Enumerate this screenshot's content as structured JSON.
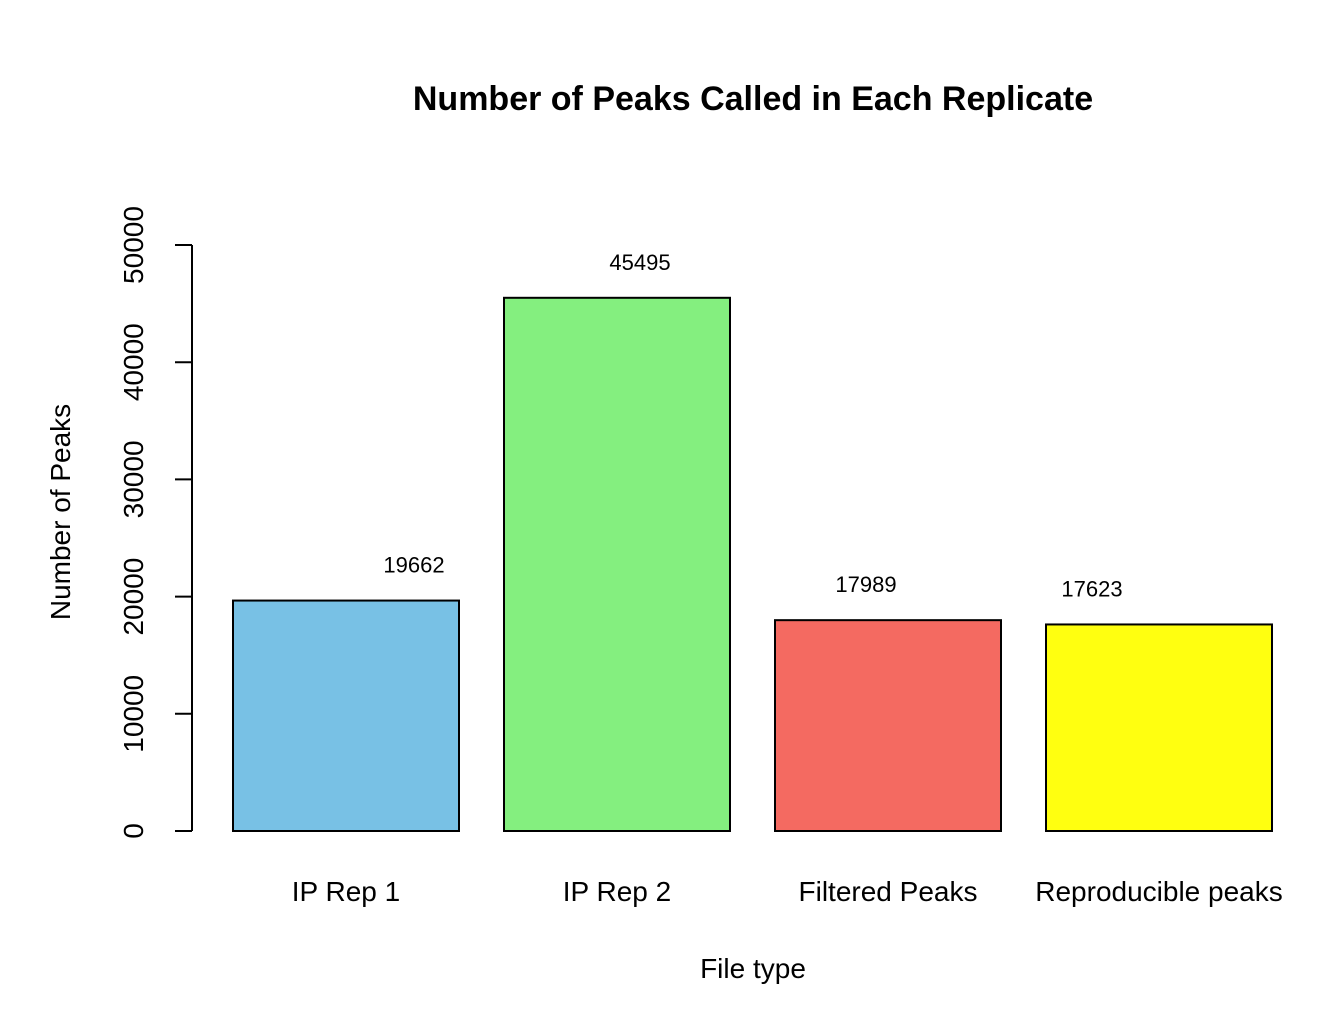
{
  "chart_data": {
    "type": "bar",
    "title": "Number of Peaks Called in Each Replicate",
    "xlabel": "File type",
    "ylabel": "Number of Peaks",
    "categories": [
      "IP Rep 1",
      "IP Rep 2",
      "Filtered Peaks",
      "Reproducible peaks"
    ],
    "values": [
      19662,
      45495,
      17989,
      17623
    ],
    "data_labels": [
      "19662",
      "45495",
      "17989",
      "17623"
    ],
    "colors": [
      "#78c1e5",
      "#84ef7f",
      "#f46a61",
      "#ffff10"
    ],
    "ylim": [
      0,
      50000
    ],
    "yticks": [
      0,
      10000,
      20000,
      30000,
      40000,
      50000
    ],
    "ytick_labels": [
      "0",
      "10000",
      "20000",
      "30000",
      "40000",
      "50000"
    ],
    "grid": false,
    "legend": "none"
  }
}
